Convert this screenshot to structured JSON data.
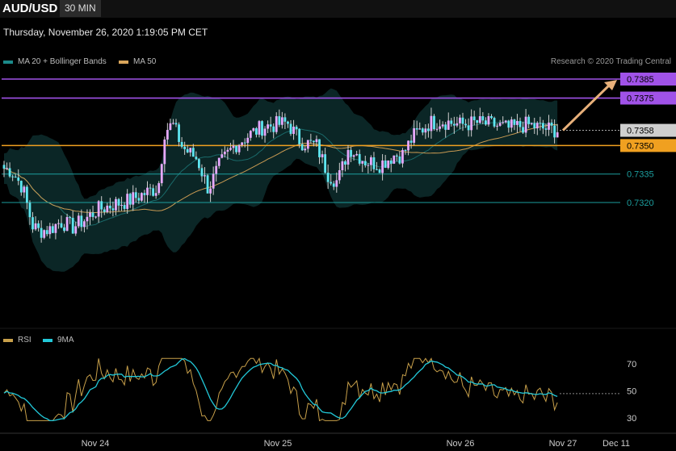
{
  "header": {
    "symbol": "AUD/USD",
    "timeframe": "30 MIN"
  },
  "timestamp": "Thursday, November 26, 2020 1:19:05 PM CET",
  "copyright": "Research © 2020 Trading Central",
  "legend_main": [
    {
      "label": "MA 20 + Bollinger Bands",
      "color": "#1b8a8a"
    },
    {
      "label": "MA 50",
      "color": "#d9a55b"
    }
  ],
  "legend_rsi": [
    {
      "label": "RSI",
      "color": "#c8a04a"
    },
    {
      "label": "9MA",
      "color": "#22c8d8"
    }
  ],
  "chart_data": {
    "type": "candlestick",
    "ylim": [
      0.7289,
      0.7393
    ],
    "levels": [
      {
        "value": 0.7385,
        "label": "0.7385",
        "kind": "resistance",
        "color": "#a052e8"
      },
      {
        "value": 0.7375,
        "label": "0.7375",
        "kind": "resistance",
        "color": "#a052e8"
      },
      {
        "value": 0.7358,
        "label": "0.7358",
        "kind": "last",
        "color": "#cfcfcf"
      },
      {
        "value": 0.735,
        "label": "0.7350",
        "kind": "pivot",
        "color": "#f0a020"
      },
      {
        "value": 0.7335,
        "label": "0.7335",
        "kind": "support",
        "color": "#1c9e9e"
      },
      {
        "value": 0.732,
        "label": "0.7320",
        "kind": "support",
        "color": "#1c9e9e"
      }
    ],
    "projection": {
      "from": 0.7358,
      "to": 0.7385
    },
    "x_ticks": [
      "Nov 24",
      "Nov 25",
      "Nov 26",
      "Nov 27",
      "Dec 11"
    ],
    "rsi": {
      "ylim": [
        24,
        80
      ],
      "ticks": [
        70,
        50,
        30
      ]
    }
  }
}
